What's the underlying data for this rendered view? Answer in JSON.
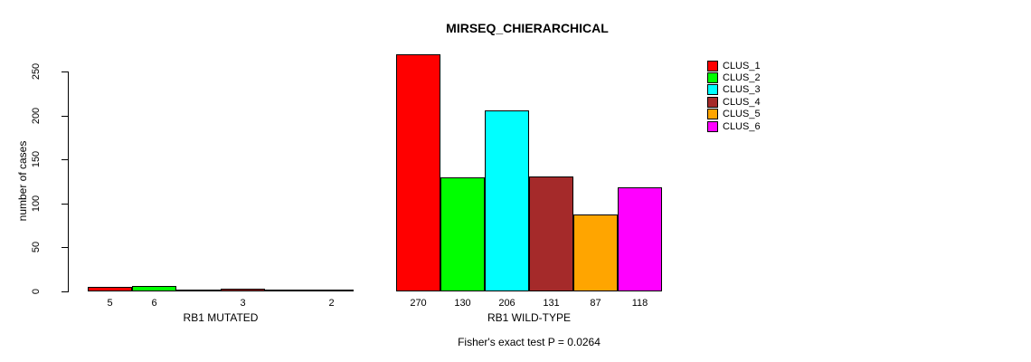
{
  "chart_data": {
    "type": "bar",
    "title": "MIRSEQ_CHIERARCHICAL",
    "ylabel": "number of cases",
    "xlabel": "",
    "ylim": [
      0,
      250
    ],
    "yticks": [
      0,
      50,
      100,
      150,
      200,
      250
    ],
    "grid": false,
    "legend_position": "top-right",
    "series_names": [
      "CLUS_1",
      "CLUS_2",
      "CLUS_3",
      "CLUS_4",
      "CLUS_5",
      "CLUS_6"
    ],
    "series_colors": [
      "#FF0000",
      "#00FF00",
      "#00FFFF",
      "#A52A2A",
      "#FFA500",
      "#FF00FF"
    ],
    "groups": [
      {
        "label": "RB1 MUTATED",
        "values": [
          5,
          6,
          0,
          3,
          0,
          2
        ]
      },
      {
        "label": "RB1 WILD-TYPE",
        "values": [
          270,
          130,
          206,
          131,
          87,
          118
        ]
      }
    ],
    "bar_value_labels_shown": [
      [
        5,
        6,
        3,
        2
      ],
      [
        270,
        130,
        206,
        131,
        87,
        118
      ]
    ],
    "footnote": "Fisher's exact test P = 0.0264",
    "axis_color": "#000000",
    "background_color": "#ffffff"
  }
}
